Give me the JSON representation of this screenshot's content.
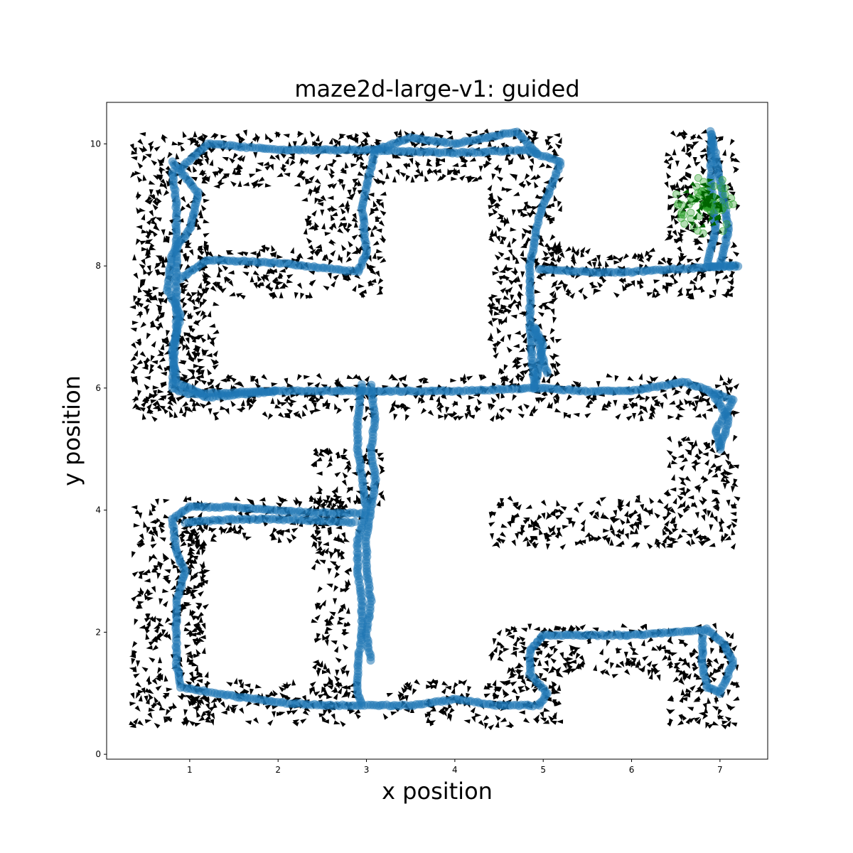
{
  "chart_data": {
    "type": "scatter",
    "title": "maze2d-large-v1: guided",
    "xlabel": "x position",
    "ylabel": "y position",
    "xlim": [
      0.06,
      7.54
    ],
    "ylim": [
      -0.08,
      10.68
    ],
    "xticks": [
      1,
      2,
      3,
      4,
      5,
      6,
      7
    ],
    "yticks": [
      0,
      2,
      4,
      6,
      8,
      10
    ],
    "grid": false,
    "colors": {
      "path": "#1f77b4",
      "goal": "#2ca02c",
      "goal_dark": "#006400",
      "arrows": "#000000"
    },
    "series": [
      {
        "type": "path",
        "loops": [
          [
            [
              0.9,
              9.6
            ],
            [
              1.2,
              10.0
            ],
            [
              2.0,
              9.9
            ],
            [
              3.0,
              9.9
            ],
            [
              4.0,
              9.85
            ],
            [
              4.8,
              9.9
            ],
            [
              5.2,
              9.7
            ],
            [
              4.95,
              8.8
            ],
            [
              4.85,
              8.0
            ],
            [
              4.85,
              7.0
            ],
            [
              4.9,
              6.0
            ],
            [
              4.0,
              5.95
            ],
            [
              3.0,
              5.95
            ],
            [
              2.0,
              5.95
            ],
            [
              1.0,
              5.9
            ],
            [
              0.8,
              6.0
            ],
            [
              0.85,
              7.0
            ],
            [
              0.85,
              8.0
            ],
            [
              0.85,
              9.0
            ],
            [
              0.8,
              9.6
            ]
          ],
          [
            [
              0.9,
              7.8
            ],
            [
              1.2,
              8.1
            ],
            [
              2.0,
              8.05
            ],
            [
              2.9,
              7.9
            ],
            [
              3.0,
              8.2
            ],
            [
              2.95,
              9.0
            ],
            [
              3.1,
              9.9
            ],
            [
              3.5,
              10.1
            ],
            [
              4.0,
              10.0
            ],
            [
              4.7,
              10.2
            ],
            [
              4.95,
              9.8
            ]
          ],
          [
            [
              0.8,
              9.7
            ],
            [
              1.1,
              9.2
            ],
            [
              1.0,
              8.6
            ],
            [
              0.8,
              8.2
            ],
            [
              0.75,
              7.6
            ],
            [
              0.9,
              7.2
            ],
            [
              0.8,
              6.6
            ],
            [
              0.85,
              6.1
            ],
            [
              1.2,
              5.85
            ],
            [
              2.0,
              5.95
            ]
          ],
          [
            [
              4.95,
              7.95
            ],
            [
              5.5,
              7.9
            ],
            [
              6.0,
              7.9
            ],
            [
              6.5,
              7.95
            ],
            [
              7.2,
              8.0
            ],
            [
              6.85,
              8.0
            ],
            [
              6.95,
              8.6
            ],
            [
              6.9,
              9.3
            ],
            [
              6.9,
              10.2
            ],
            [
              6.95,
              9.8
            ],
            [
              7.1,
              8.6
            ],
            [
              7.0,
              8.0
            ]
          ],
          [
            [
              4.9,
              6.0
            ],
            [
              5.5,
              5.95
            ],
            [
              6.0,
              5.95
            ],
            [
              6.6,
              6.1
            ],
            [
              7.15,
              5.8
            ],
            [
              6.95,
              5.3
            ],
            [
              7.0,
              5.0
            ],
            [
              7.1,
              5.5
            ],
            [
              6.9,
              5.95
            ]
          ],
          [
            [
              4.9,
              6.0
            ],
            [
              5.0,
              6.7
            ],
            [
              4.9,
              7.0
            ],
            [
              5.05,
              6.2
            ]
          ],
          [
            [
              2.95,
              6.05
            ],
            [
              2.9,
              5.5
            ],
            [
              2.9,
              5.0
            ],
            [
              2.95,
              4.5
            ],
            [
              3.0,
              4.0
            ],
            [
              2.9,
              3.5
            ],
            [
              2.9,
              3.0
            ],
            [
              2.95,
              2.5
            ],
            [
              2.95,
              2.0
            ],
            [
              2.9,
              1.5
            ],
            [
              2.9,
              1.0
            ],
            [
              2.95,
              0.8
            ]
          ],
          [
            [
              3.05,
              6.05
            ],
            [
              3.1,
              5.5
            ],
            [
              3.05,
              5.0
            ],
            [
              3.1,
              4.5
            ],
            [
              3.05,
              4.0
            ],
            [
              3.0,
              3.5
            ],
            [
              3.0,
              3.0
            ],
            [
              3.05,
              2.5
            ],
            [
              3.0,
              2.0
            ],
            [
              3.05,
              1.5
            ]
          ],
          [
            [
              2.95,
              3.95
            ],
            [
              2.5,
              3.95
            ],
            [
              2.0,
              4.0
            ],
            [
              1.5,
              4.05
            ],
            [
              1.0,
              4.05
            ],
            [
              0.8,
              3.85
            ],
            [
              0.85,
              3.3
            ],
            [
              0.95,
              3.0
            ],
            [
              0.85,
              2.5
            ],
            [
              0.85,
              2.0
            ],
            [
              0.85,
              1.5
            ],
            [
              0.9,
              1.1
            ],
            [
              1.5,
              0.95
            ],
            [
              2.0,
              0.85
            ],
            [
              2.5,
              0.8
            ],
            [
              2.95,
              0.8
            ],
            [
              3.5,
              0.8
            ],
            [
              4.0,
              0.9
            ],
            [
              4.5,
              0.8
            ],
            [
              4.95,
              0.8
            ],
            [
              5.05,
              1.0
            ],
            [
              4.85,
              1.3
            ],
            [
              4.85,
              1.7
            ],
            [
              5.0,
              1.95
            ],
            [
              5.5,
              1.95
            ],
            [
              6.0,
              1.95
            ],
            [
              6.5,
              2.0
            ],
            [
              6.85,
              2.05
            ],
            [
              7.05,
              1.8
            ],
            [
              7.15,
              1.5
            ],
            [
              7.0,
              1.0
            ],
            [
              6.85,
              1.1
            ],
            [
              6.8,
              1.5
            ],
            [
              6.8,
              2.0
            ]
          ],
          [
            [
              0.95,
              3.8
            ],
            [
              1.5,
              3.85
            ],
            [
              2.0,
              3.85
            ],
            [
              2.9,
              3.8
            ]
          ]
        ]
      },
      {
        "type": "goal-cluster",
        "center": [
          6.85,
          9.0
        ]
      },
      {
        "type": "quiver",
        "regions": [
          [
            0.35,
            1.15,
            0.45,
            4.2
          ],
          [
            1.05,
            2.95,
            0.5,
            1.2
          ],
          [
            1.0,
            1.2,
            0.8,
            3.8
          ],
          [
            2.4,
            2.8,
            1.0,
            4.2
          ],
          [
            0.9,
            2.95,
            3.5,
            4.2
          ],
          [
            2.4,
            3.2,
            4.1,
            5.0
          ],
          [
            3.2,
            5.2,
            0.45,
            1.2
          ],
          [
            4.4,
            5.1,
            1.2,
            2.1
          ],
          [
            4.95,
            7.2,
            1.25,
            2.1
          ],
          [
            6.4,
            7.2,
            0.45,
            1.3
          ],
          [
            4.4,
            6.5,
            3.4,
            4.2
          ],
          [
            6.4,
            7.2,
            3.4,
            5.2
          ],
          [
            0.35,
            7.2,
            5.5,
            6.2
          ],
          [
            0.35,
            1.2,
            6.2,
            10.2
          ],
          [
            1.0,
            2.3,
            9.3,
            10.2
          ],
          [
            2.3,
            5.2,
            9.4,
            10.2
          ],
          [
            2.3,
            3.2,
            8.2,
            9.4
          ],
          [
            1.1,
            3.2,
            7.5,
            8.3
          ],
          [
            1.0,
            1.3,
            6.2,
            7.5
          ],
          [
            4.4,
            5.2,
            6.2,
            9.4
          ],
          [
            5.0,
            6.5,
            7.5,
            8.3
          ],
          [
            6.4,
            7.2,
            7.5,
            10.2
          ]
        ]
      }
    ]
  }
}
